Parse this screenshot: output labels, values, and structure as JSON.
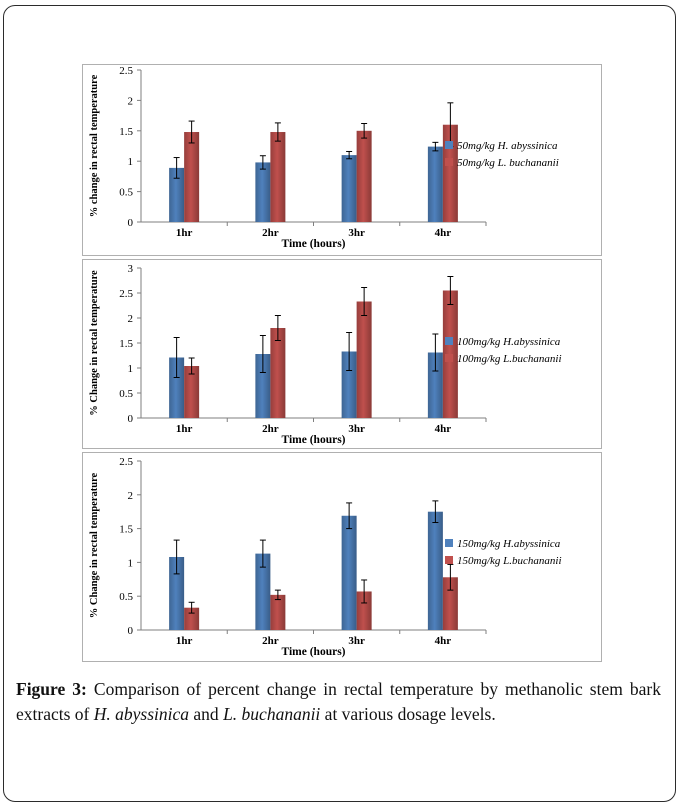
{
  "figure": {
    "caption_label": "Figure 3:",
    "caption_text_1": " Comparison of percent change in rectal temperature by methanolic stem bark extracts of ",
    "caption_species_1": "H. abyssinica",
    "caption_text_2": " and ",
    "caption_species_2": "L. buchananii",
    "caption_text_3": " at various dosage levels."
  },
  "chart_data": [
    {
      "type": "bar",
      "xlabel": "Time  (hours)",
      "ylabel": "% change in rectal temperature",
      "categories": [
        "1hr",
        "2hr",
        "3hr",
        "4hr"
      ],
      "ylim": [
        0,
        2.5
      ],
      "yticks": [
        "0",
        "0.5",
        "1",
        "1.5",
        "2",
        "2.5"
      ],
      "series": [
        {
          "name": "50mg/kg H. abyssinica",
          "color": "#4f81bd",
          "values": [
            0.89,
            0.98,
            1.1,
            1.24
          ],
          "errors": [
            0.17,
            0.11,
            0.06,
            0.07
          ]
        },
        {
          "name": "50mg/kg L. buchananii",
          "color": "#c0504d",
          "values": [
            1.48,
            1.48,
            1.5,
            1.6
          ],
          "errors": [
            0.18,
            0.15,
            0.12,
            0.36
          ]
        }
      ]
    },
    {
      "type": "bar",
      "xlabel": "Time (hours)",
      "ylabel": "% Change in rectal temperature",
      "categories": [
        "1hr",
        "2hr",
        "3hr",
        "4hr"
      ],
      "ylim": [
        0,
        3
      ],
      "yticks": [
        "0",
        "0.5",
        "1",
        "1.5",
        "2",
        "2.5",
        "3"
      ],
      "series": [
        {
          "name": "100mg/kg H.abyssinica",
          "color": "#4f81bd",
          "values": [
            1.21,
            1.28,
            1.33,
            1.31
          ],
          "errors": [
            0.4,
            0.37,
            0.38,
            0.37
          ]
        },
        {
          "name": "100mg/kg L.buchananii",
          "color": "#c0504d",
          "values": [
            1.04,
            1.8,
            2.33,
            2.55
          ],
          "errors": [
            0.16,
            0.25,
            0.28,
            0.28
          ]
        }
      ]
    },
    {
      "type": "bar",
      "xlabel": "Time (hours)",
      "ylabel": "% Change in rectal temperature",
      "categories": [
        "1hr",
        "2hr",
        "3hr",
        "4hr"
      ],
      "ylim": [
        0,
        2.5
      ],
      "yticks": [
        "0",
        "0.5",
        "1",
        "1.5",
        "2",
        "2.5"
      ],
      "series": [
        {
          "name": "150mg/kg H.abyssinica",
          "color": "#4f81bd",
          "values": [
            1.08,
            1.13,
            1.69,
            1.75
          ],
          "errors": [
            0.25,
            0.2,
            0.19,
            0.16
          ]
        },
        {
          "name": "150mg/kg L.buchananii",
          "color": "#c0504d",
          "values": [
            0.33,
            0.52,
            0.57,
            0.78
          ],
          "errors": [
            0.08,
            0.07,
            0.17,
            0.19
          ]
        }
      ]
    }
  ]
}
